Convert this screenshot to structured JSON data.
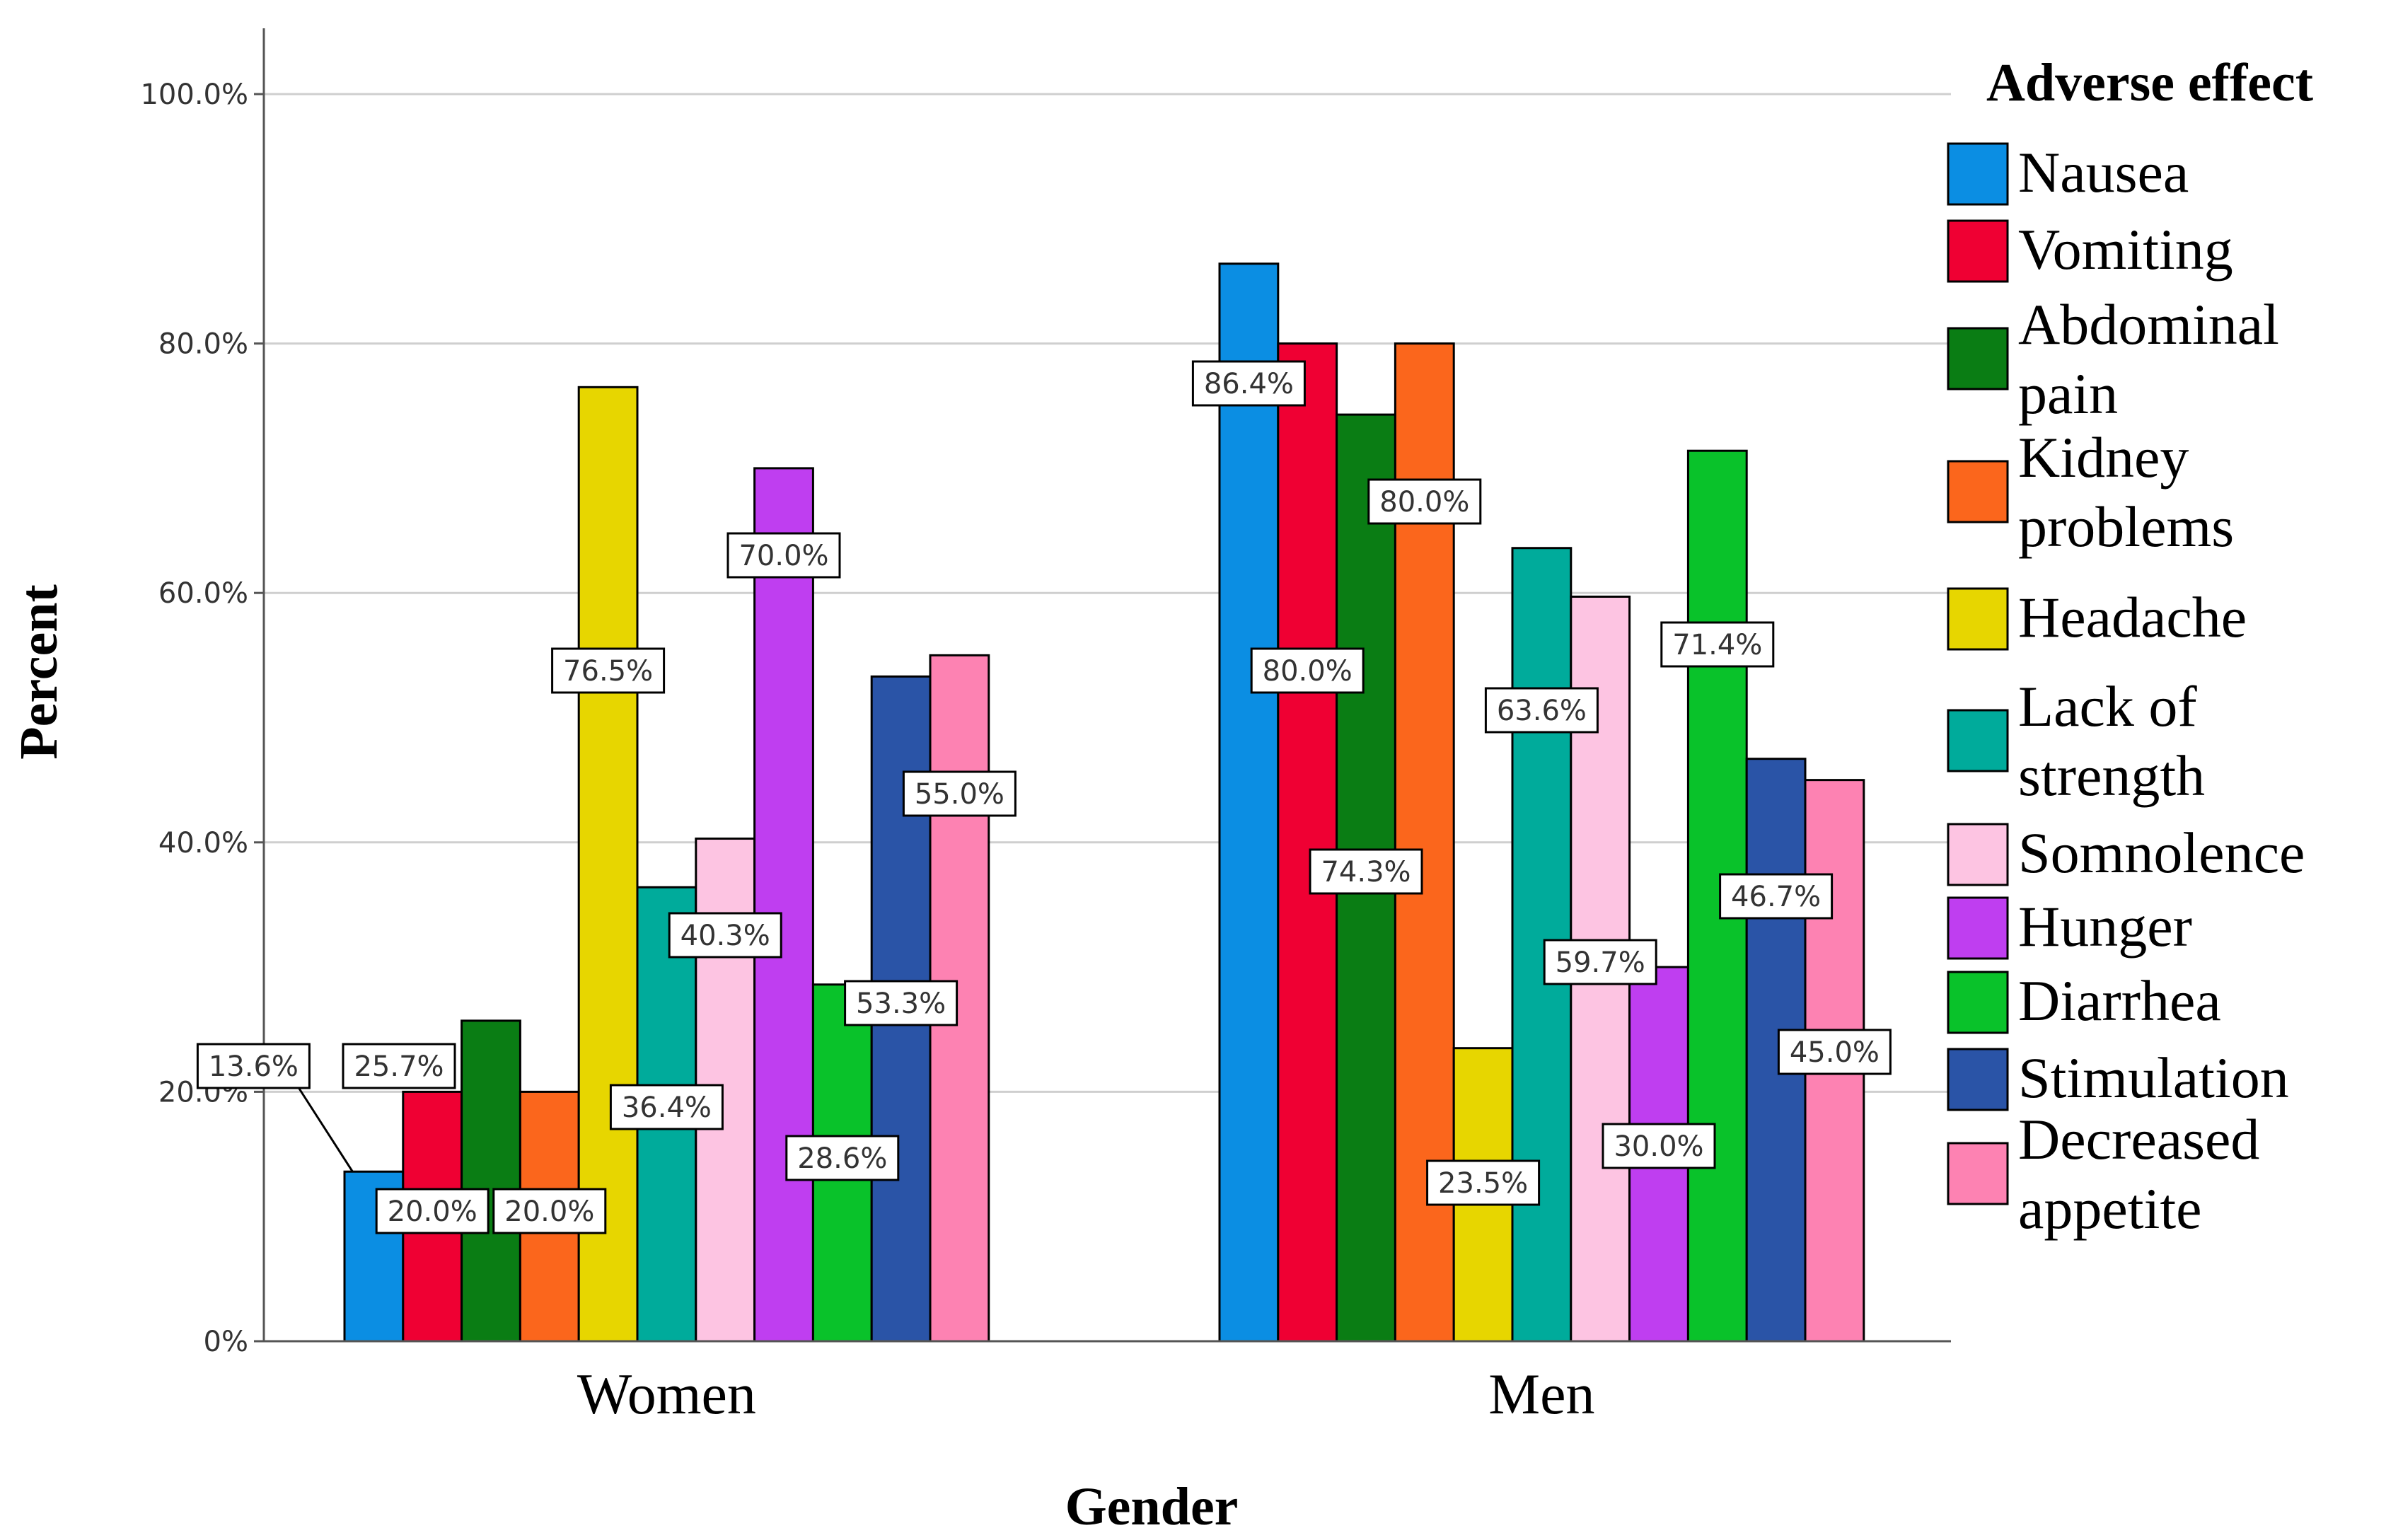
{
  "chart_data": {
    "type": "bar",
    "xlabel": "Gender",
    "ylabel": "Percent",
    "ylim": [
      0,
      100
    ],
    "yticks": [
      "0%",
      "20.0%",
      "40.0%",
      "60.0%",
      "80.0%",
      "100.0%"
    ],
    "grid": true,
    "legend_title": "Adverse effect",
    "legend_position": "right",
    "categories": [
      "Women",
      "Men"
    ],
    "series": [
      {
        "name": "Nausea",
        "color": "#0b8ee3",
        "values": [
          13.6,
          86.4
        ],
        "labels": [
          "13.6%",
          "86.4%"
        ]
      },
      {
        "name": "Vomiting",
        "color": "#ef0033",
        "values": [
          20.0,
          80.0
        ],
        "labels": [
          "20.0%",
          "80.0%"
        ]
      },
      {
        "name": "Abdominal pain",
        "color": "#0a7d14",
        "values": [
          25.7,
          74.3
        ],
        "labels": [
          "25.7%",
          "74.3%"
        ]
      },
      {
        "name": "Kidney problems",
        "color": "#fb661c",
        "values": [
          20.0,
          80.0
        ],
        "labels": [
          "20.0%",
          "80.0%"
        ]
      },
      {
        "name": "Headache",
        "color": "#e7d600",
        "values": [
          76.5,
          23.5
        ],
        "labels": [
          "76.5%",
          "23.5%"
        ]
      },
      {
        "name": "Lack of strength",
        "color": "#00ab9b",
        "values": [
          36.4,
          63.6
        ],
        "labels": [
          "36.4%",
          "63.6%"
        ]
      },
      {
        "name": "Somnolence",
        "color": "#fdc4e2",
        "values": [
          40.3,
          59.7
        ],
        "labels": [
          "40.3%",
          "59.7%"
        ]
      },
      {
        "name": "Hunger",
        "color": "#bf3ef0",
        "values": [
          70.0,
          30.0
        ],
        "labels": [
          "70.0%",
          "30.0%"
        ]
      },
      {
        "name": "Diarrhea",
        "color": "#09c22a",
        "values": [
          28.6,
          71.4
        ],
        "labels": [
          "28.6%",
          "71.4%"
        ]
      },
      {
        "name": "Stimulation",
        "color": "#2a54a7",
        "values": [
          53.3,
          46.7
        ],
        "labels": [
          "53.3%",
          "46.7%"
        ]
      },
      {
        "name": "Decreased appetite",
        "color": "#fd82b2",
        "values": [
          55.0,
          45.0
        ],
        "labels": [
          "55.0%",
          "45.0%"
        ]
      }
    ]
  }
}
